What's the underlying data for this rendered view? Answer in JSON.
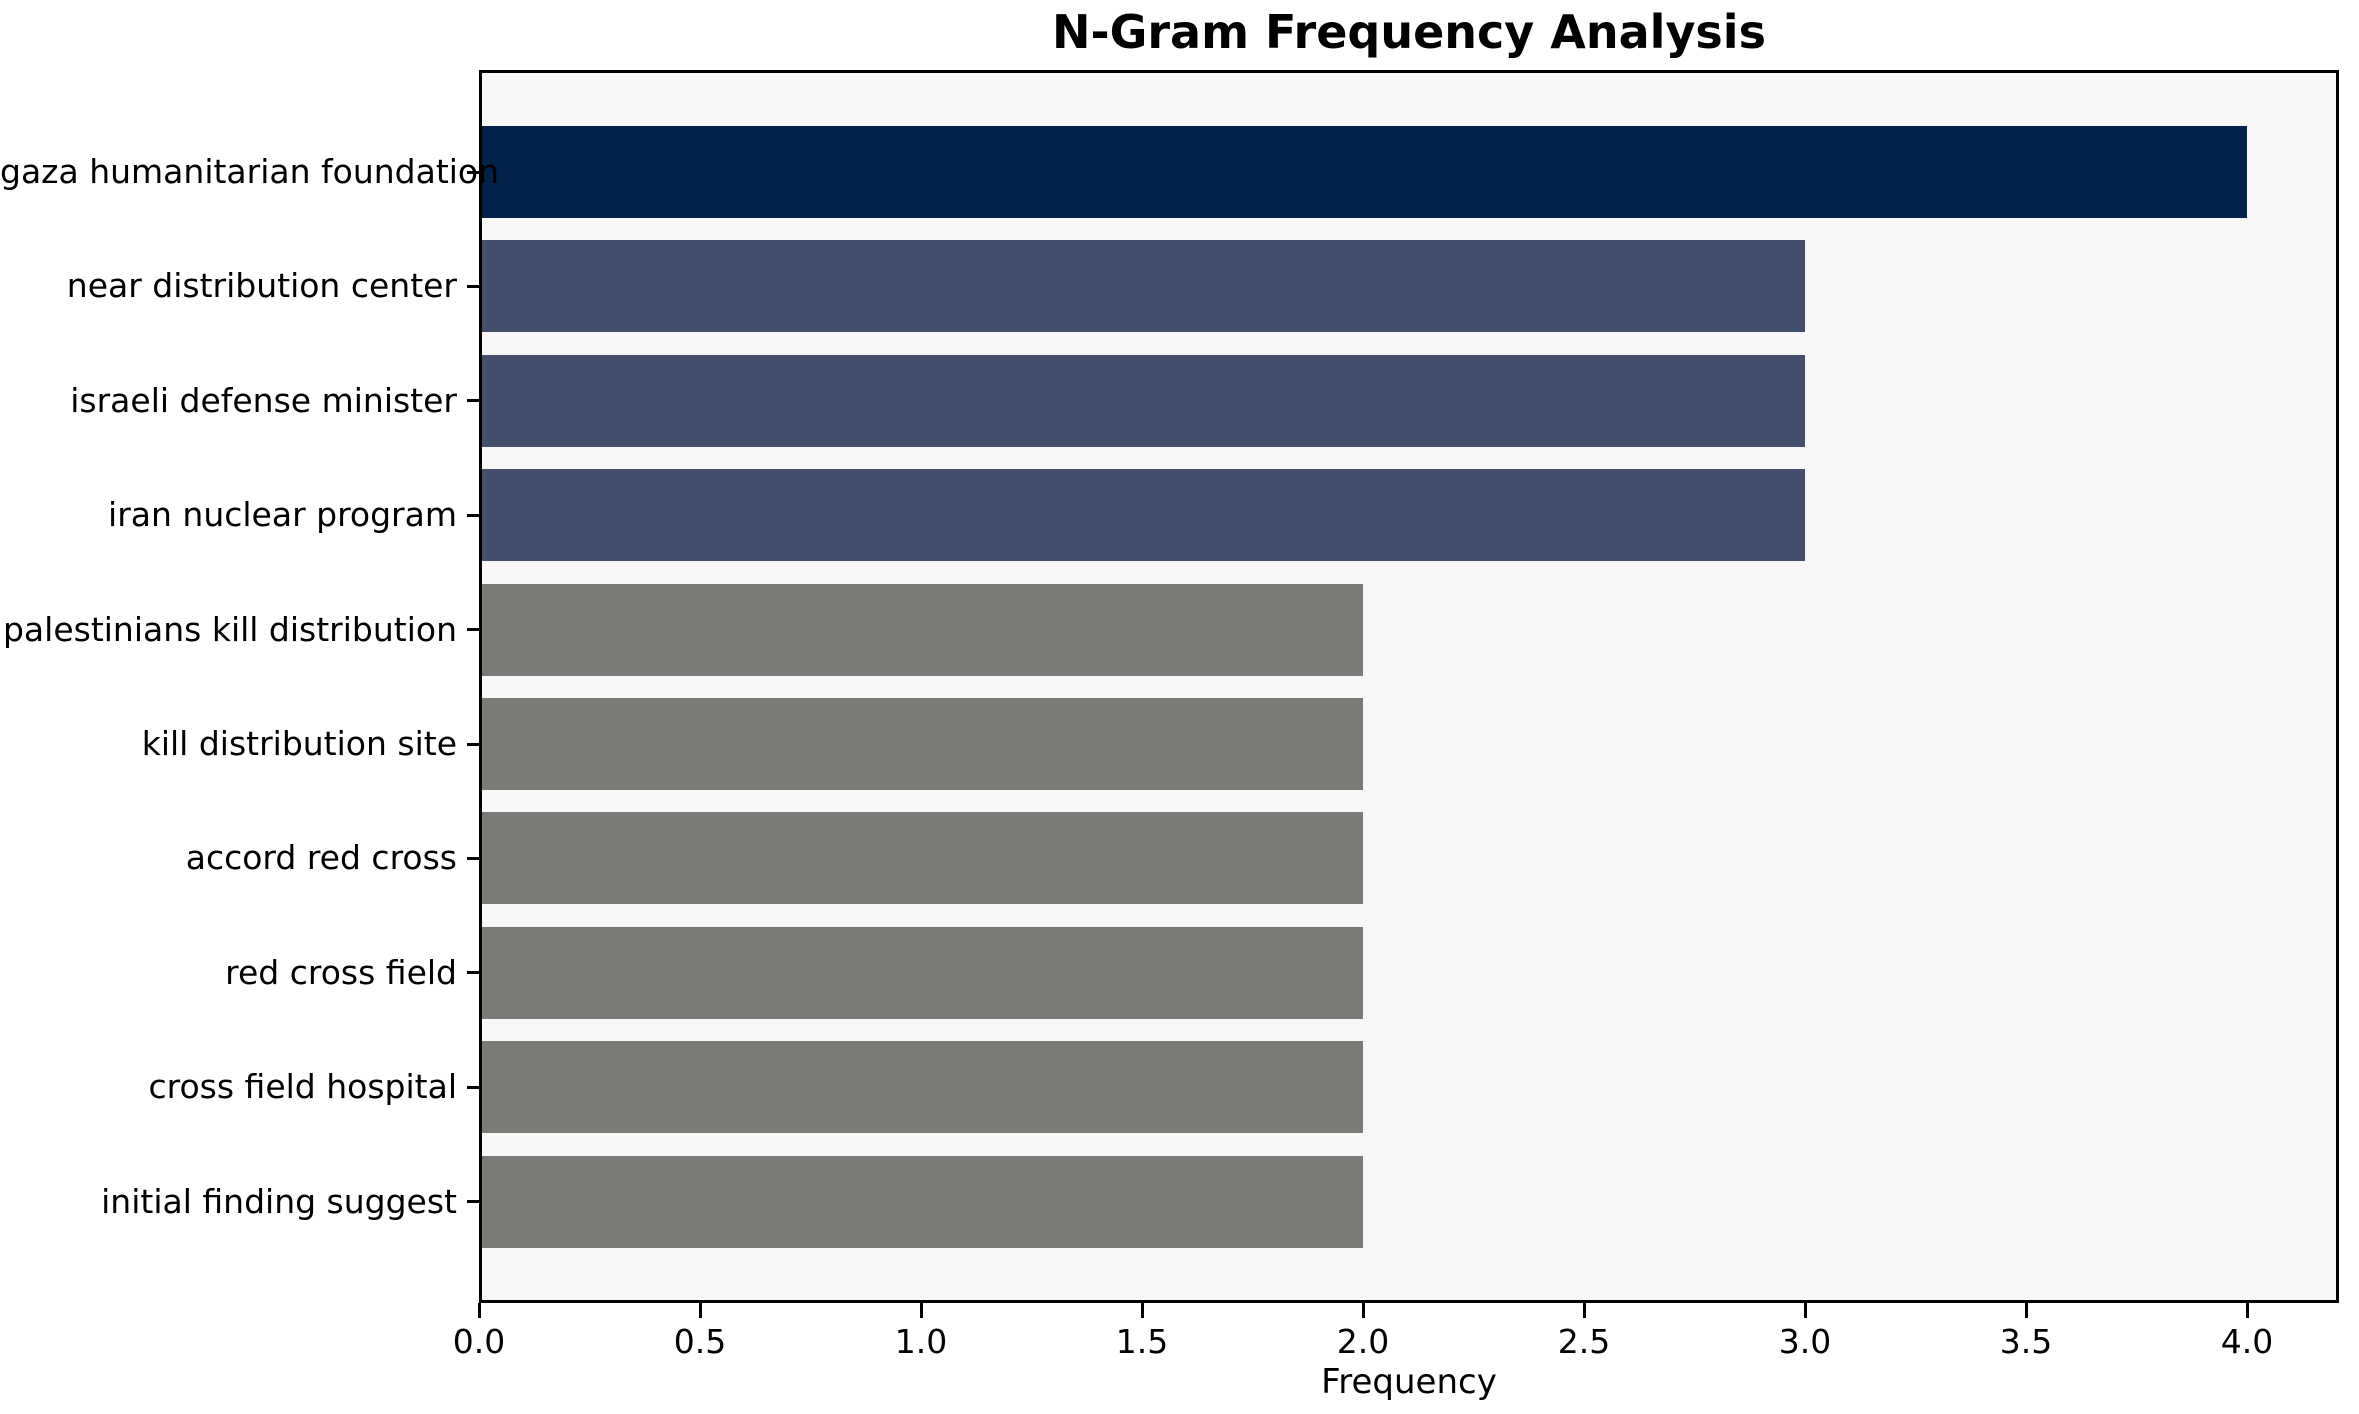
{
  "chart_data": {
    "type": "bar",
    "orientation": "horizontal",
    "title": "N-Gram Frequency Analysis",
    "xlabel": "Frequency",
    "ylabel": "",
    "categories": [
      "gaza humanitarian foundation",
      "near distribution center",
      "israeli defense minister",
      "iran nuclear program",
      "palestinians kill distribution",
      "kill distribution site",
      "accord red cross",
      "red cross field",
      "cross field hospital",
      "initial finding suggest"
    ],
    "values": [
      4,
      3,
      3,
      3,
      2,
      2,
      2,
      2,
      2,
      2
    ],
    "bar_colors": [
      "#022149",
      "#444f6d",
      "#444f6d",
      "#444f6d",
      "#7a7a76",
      "#7a7a76",
      "#7a7a76",
      "#7a7a76",
      "#7a7a76",
      "#7a7a76"
    ],
    "x_tick_labels": [
      "0.0",
      "0.5",
      "1.0",
      "1.5",
      "2.0",
      "2.5",
      "3.0",
      "3.5",
      "4.0"
    ],
    "x_tick_values": [
      0,
      0.5,
      1,
      1.5,
      2,
      2.5,
      3,
      3.5,
      4
    ],
    "xlim": [
      0,
      4.21
    ],
    "grid": false,
    "legend": null,
    "colors": {
      "figure_background": "#ffffff",
      "plot_background": "#f8f8f8",
      "spine": "#000000",
      "text": "#000000"
    }
  }
}
